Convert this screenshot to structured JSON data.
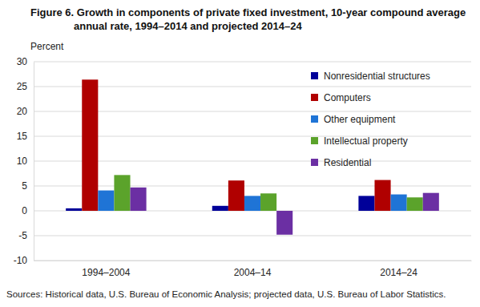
{
  "chart_data": {
    "type": "bar",
    "title": "Figure 6. Growth in components of private fixed investment, 10-year compound average annual rate, 1994–2014 and projected 2014–24",
    "y_label": "Percent",
    "source": "Sources: Historical data, U.S. Bureau of Economic Analysis; projected data, U.S. Bureau of Labor Statistics.",
    "categories": [
      "1994–2004",
      "2004–14",
      "2014–24"
    ],
    "series": [
      {
        "name": "Nonresidential structures",
        "color": "#000099",
        "values": [
          0.5,
          1.0,
          3.0
        ]
      },
      {
        "name": "Computers",
        "color": "#b00000",
        "values": [
          26.4,
          6.1,
          6.2
        ]
      },
      {
        "name": "Other equipment",
        "color": "#1f74d6",
        "values": [
          4.1,
          3.0,
          3.3
        ]
      },
      {
        "name": "Intellectual property",
        "color": "#5ba32b",
        "values": [
          7.2,
          3.5,
          2.7
        ]
      },
      {
        "name": "Residential",
        "color": "#6b2fa3",
        "values": [
          4.7,
          -4.8,
          3.6
        ]
      }
    ],
    "ylim": [
      -10,
      30
    ],
    "yticks": [
      -10,
      -5,
      0,
      5,
      10,
      15,
      20,
      25,
      30
    ],
    "grid": true,
    "legend": "upper right"
  }
}
